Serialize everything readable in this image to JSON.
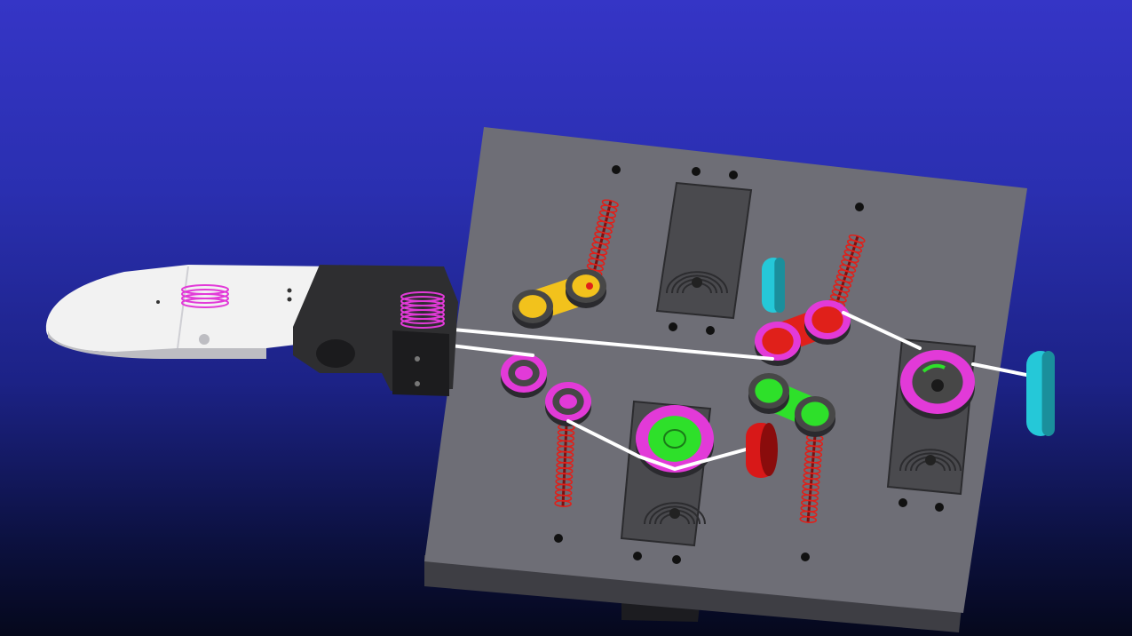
{
  "scene": {
    "background_colors": [
      "#3535c6",
      "#05081c"
    ],
    "colors": {
      "plate": "#6e6e76",
      "plate_edge": "#3e3e44",
      "servo": "#4a4a4e",
      "spring": "#e0201a",
      "pulley_magenta": "#e23ad8",
      "pulley_green": "#2ee02a",
      "pulley_red": "#e0201a",
      "cable": "#ffffff",
      "lever_yellow": "#f2c21c",
      "lever_green": "#2ee02a",
      "lever_red": "#e0201a",
      "guide_cyan": "#25c8d8",
      "finger": "#f2f2f2",
      "knuckle_dark": "#2e2e30",
      "roller_red": "#d81818"
    },
    "parts": [
      "base-plate",
      "servo-motor",
      "tension-spring",
      "pulley",
      "lever-arm",
      "tendon-cable",
      "cable-guide",
      "finger-link",
      "knuckle-joint"
    ]
  }
}
